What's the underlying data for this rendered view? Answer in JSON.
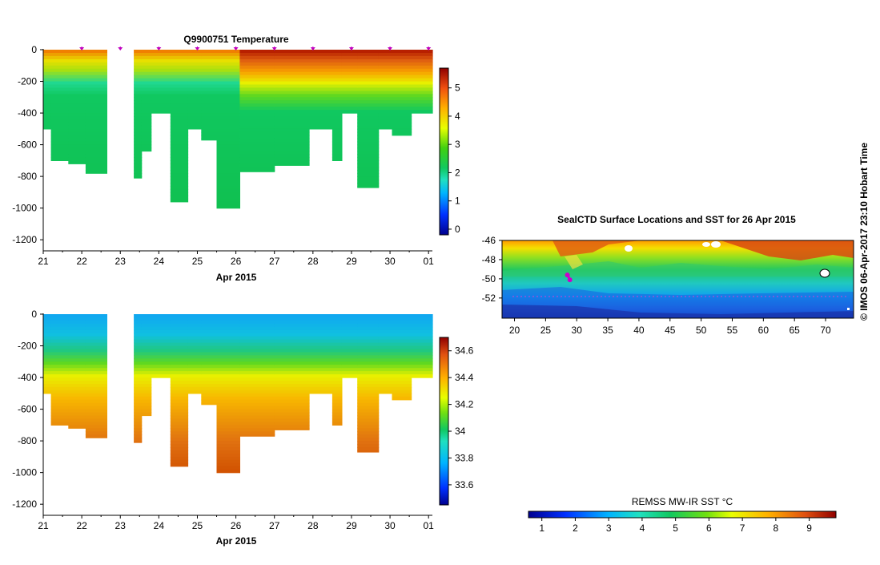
{
  "chart_data": [
    {
      "type": "heatmap",
      "title": "Q9900751  Temperature",
      "xlabel": "Apr 2015",
      "ylabel": "",
      "x_ticks": [
        "21",
        "22",
        "23",
        "24",
        "25",
        "26",
        "27",
        "28",
        "29",
        "30",
        "01"
      ],
      "y_ticks": [
        0,
        -200,
        -400,
        -600,
        -800,
        -1000,
        -1200
      ],
      "xlim": [
        21,
        31.1
      ],
      "ylim": [
        -1270,
        0
      ],
      "colorbar_ticks": [
        0,
        1,
        2,
        3,
        4,
        5
      ],
      "colorbar_range": [
        -0.2,
        5.7
      ],
      "profile_markers_day": [
        22,
        23,
        24,
        25,
        26,
        27,
        28,
        29,
        30,
        31
      ],
      "profiles": [
        {
          "x0": 21.0,
          "x1": 21.2,
          "depth": 500
        },
        {
          "x0": 21.2,
          "x1": 21.65,
          "depth": 700
        },
        {
          "x0": 21.65,
          "x1": 22.1,
          "depth": 720
        },
        {
          "x0": 22.1,
          "x1": 22.65,
          "depth": 780
        },
        {
          "x0": 23.35,
          "x1": 23.55,
          "depth": 810
        },
        {
          "x0": 23.55,
          "x1": 23.8,
          "depth": 640
        },
        {
          "x0": 23.8,
          "x1": 24.3,
          "depth": 400
        },
        {
          "x0": 24.3,
          "x1": 24.75,
          "depth": 960
        },
        {
          "x0": 24.75,
          "x1": 25.1,
          "depth": 500
        },
        {
          "x0": 25.1,
          "x1": 25.5,
          "depth": 570
        },
        {
          "x0": 25.5,
          "x1": 26.1,
          "depth": 1000
        },
        {
          "x0": 26.1,
          "x1": 27.0,
          "depth": 770
        },
        {
          "x0": 27.0,
          "x1": 27.9,
          "depth": 730
        },
        {
          "x0": 27.9,
          "x1": 28.5,
          "depth": 500
        },
        {
          "x0": 28.5,
          "x1": 28.75,
          "depth": 700
        },
        {
          "x0": 28.75,
          "x1": 29.15,
          "depth": 400
        },
        {
          "x0": 29.15,
          "x1": 29.7,
          "depth": 870
        },
        {
          "x0": 29.7,
          "x1": 30.05,
          "depth": 500
        },
        {
          "x0": 30.05,
          "x1": 30.55,
          "depth": 540
        },
        {
          "x0": 30.55,
          "x1": 31.1,
          "depth": 400
        }
      ]
    },
    {
      "type": "heatmap",
      "title": "",
      "xlabel": "Apr 2015",
      "ylabel": "",
      "x_ticks": [
        "21",
        "22",
        "23",
        "24",
        "25",
        "26",
        "27",
        "28",
        "29",
        "30",
        "01"
      ],
      "y_ticks": [
        0,
        -200,
        -400,
        -600,
        -800,
        -1000,
        -1200
      ],
      "xlim": [
        21,
        31.1
      ],
      "ylim": [
        -1270,
        0
      ],
      "colorbar_ticks": [
        33.6,
        33.8,
        34,
        34.2,
        34.4,
        34.6
      ],
      "colorbar_range": [
        33.45,
        34.7
      ]
    },
    {
      "type": "heatmap",
      "title": "SealCTD Surface Locations and SST for 26 Apr 2015",
      "xlabel": "",
      "ylabel": "",
      "x_ticks": [
        20,
        25,
        30,
        35,
        40,
        45,
        50,
        55,
        60,
        65,
        70
      ],
      "y_ticks": [
        -46,
        -48,
        -50,
        -52
      ],
      "xlim": [
        18,
        74.5
      ],
      "ylim": [
        -54.1,
        -46
      ],
      "colorbar_label": "REMSS MW-IR SST °C",
      "colorbar_ticks": [
        1,
        2,
        3,
        4,
        5,
        6,
        7,
        8,
        9
      ],
      "colorbar_range": [
        0.6,
        9.8
      ],
      "seal_positions": [
        {
          "lon": 28.5,
          "lat": -49.6
        },
        {
          "lon": 28.9,
          "lat": -50.1
        }
      ]
    }
  ],
  "credit": "© IMOS 06-Apr-2017 23:10 Hobart Time",
  "colors": {
    "track": "#cc00cc",
    "marker": "#c000c0"
  }
}
